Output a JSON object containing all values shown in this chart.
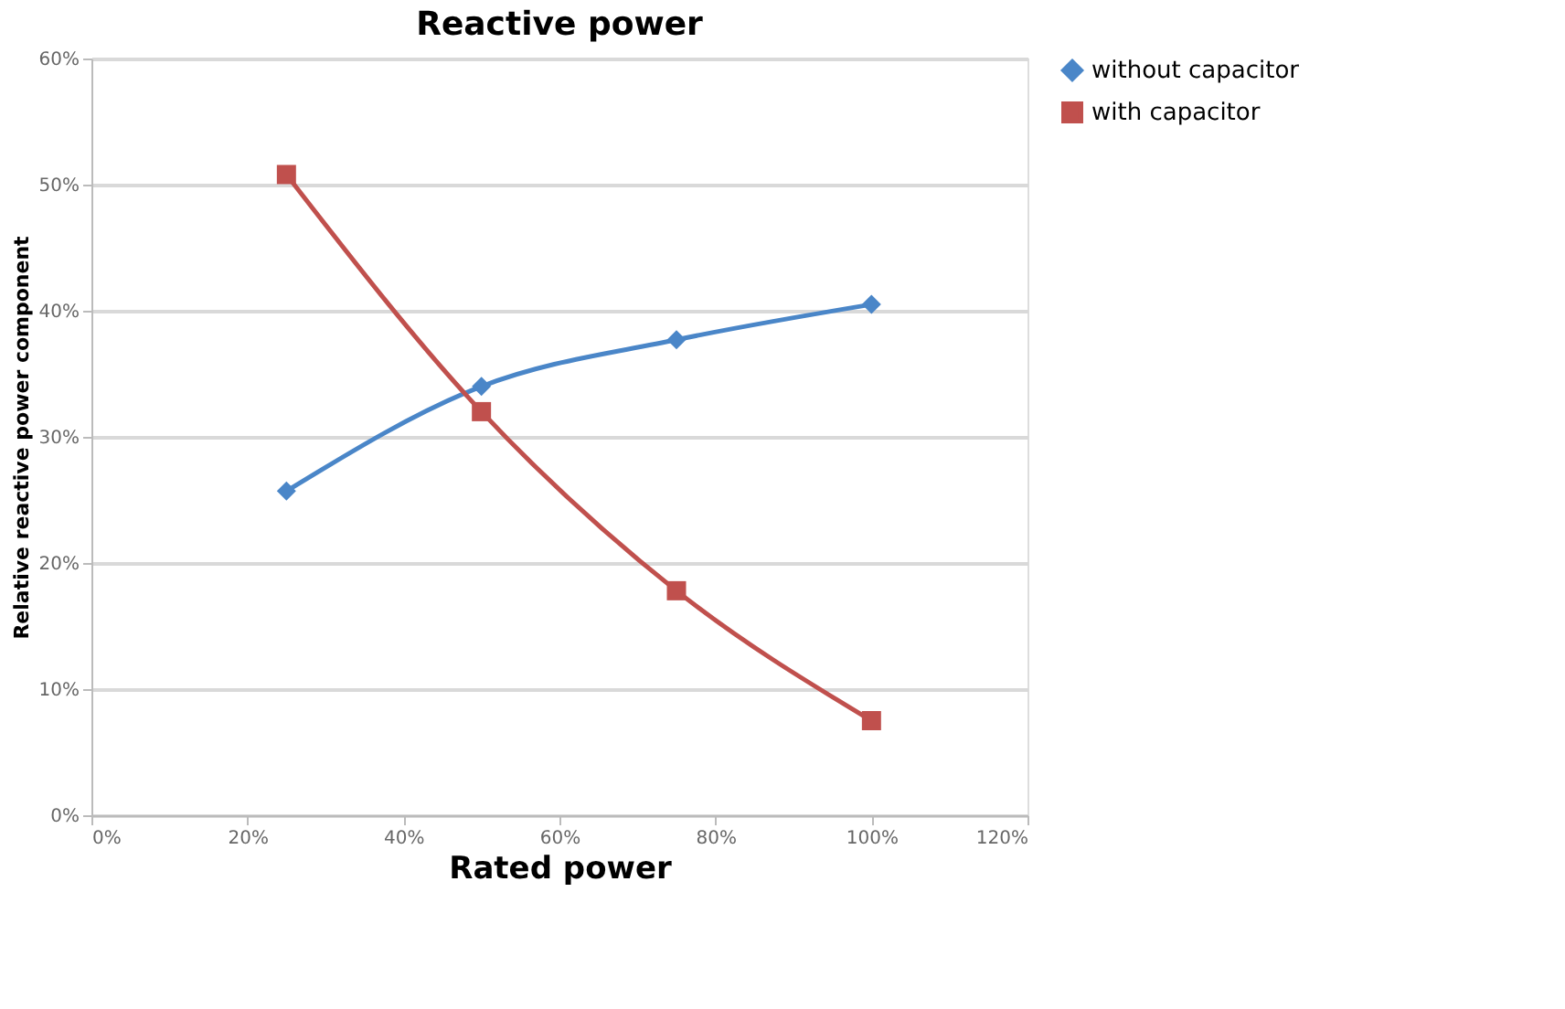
{
  "chart_data": {
    "type": "line",
    "title": "Reactive power",
    "xlabel": "Rated power",
    "ylabel": "Relative reactive power component",
    "x": [
      25,
      50,
      75,
      100
    ],
    "series": [
      {
        "name": "without capacitor",
        "color": "#4a86c8",
        "marker": "diamond",
        "values": [
          25.7,
          34,
          37.7,
          40.5
        ]
      },
      {
        "name": "with capacitor",
        "color": "#c0504d",
        "marker": "square",
        "values": [
          50.8,
          32,
          17.8,
          7.5
        ]
      }
    ],
    "xlim": [
      0,
      120
    ],
    "xticks": [
      {
        "value": 0,
        "label": "0%"
      },
      {
        "value": 20,
        "label": "20%"
      },
      {
        "value": 40,
        "label": "40%"
      },
      {
        "value": 60,
        "label": "60%"
      },
      {
        "value": 80,
        "label": "80%"
      },
      {
        "value": 100,
        "label": "100%"
      },
      {
        "value": 120,
        "label": "120%"
      }
    ],
    "ylim": [
      0,
      60
    ],
    "yticks": [
      {
        "value": 0,
        "label": "0%"
      },
      {
        "value": 10,
        "label": "10%"
      },
      {
        "value": 20,
        "label": "20%"
      },
      {
        "value": 30,
        "label": "30%"
      },
      {
        "value": 40,
        "label": "40%"
      },
      {
        "value": 50,
        "label": "50%"
      },
      {
        "value": 60,
        "label": "60%"
      }
    ],
    "grid": "y",
    "legend": "right",
    "line_style": "solid"
  }
}
